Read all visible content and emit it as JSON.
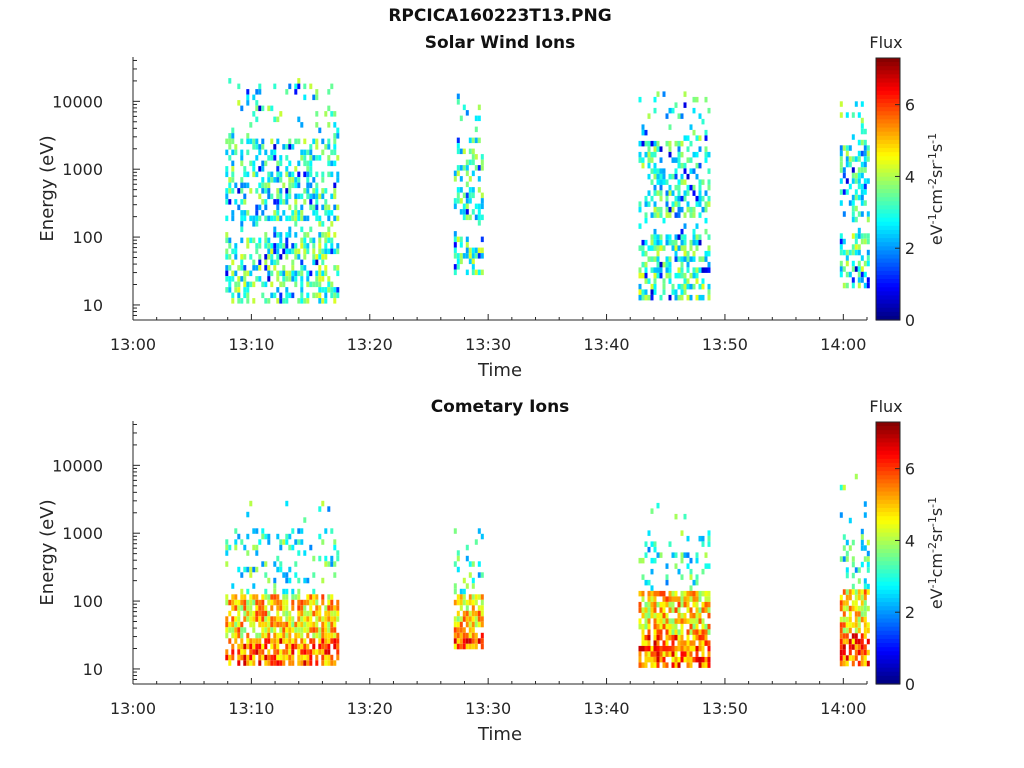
{
  "figure_title": "RPCICA160223T13.PNG",
  "chart_data": [
    {
      "type": "heatmap",
      "title": "Solar Wind Ions",
      "xlabel": "Time",
      "ylabel": "Energy (eV)",
      "x_ticks": [
        "13:00",
        "13:10",
        "13:20",
        "13:30",
        "13:40",
        "13:50",
        "14:00"
      ],
      "y_ticks": [
        "10",
        "100",
        "1000",
        "10000"
      ],
      "y_scale": "log",
      "ylim": [
        6,
        45000
      ],
      "xlim_minutes": [
        0,
        62
      ],
      "colorbar": {
        "title": "Flux",
        "label": "eV-1cm-2sr-1s-1",
        "ticks": [
          "0",
          "2",
          "4",
          "6"
        ],
        "range": [
          0,
          7.3
        ],
        "colormap": "jet"
      },
      "bursts": [
        {
          "start_min": 7.8,
          "end_min": 17.3,
          "energy_min": 12,
          "energy_max": 22000
        },
        {
          "start_min": 27.1,
          "end_min": 29.5,
          "energy_min": 28,
          "energy_max": 13000
        },
        {
          "start_min": 42.7,
          "end_min": 48.6,
          "energy_min": 12,
          "energy_max": 14000
        },
        {
          "start_min": 59.7,
          "end_min": 62.0,
          "energy_min": 18,
          "energy_max": 10000
        }
      ]
    },
    {
      "type": "heatmap",
      "title": "Cometary Ions",
      "xlabel": "Time",
      "ylabel": "Energy (eV)",
      "x_ticks": [
        "13:00",
        "13:10",
        "13:20",
        "13:30",
        "13:40",
        "13:50",
        "14:00"
      ],
      "y_ticks": [
        "10",
        "100",
        "1000",
        "10000"
      ],
      "y_scale": "log",
      "ylim": [
        6,
        45000
      ],
      "xlim_minutes": [
        0,
        62
      ],
      "colorbar": {
        "title": "Flux",
        "label": "eV-1cm-2sr-1s-1",
        "ticks": [
          "0",
          "2",
          "4",
          "6"
        ],
        "range": [
          0,
          7.3
        ],
        "colormap": "jet"
      },
      "bursts": [
        {
          "start_min": 7.8,
          "end_min": 17.3,
          "energy_min": 12,
          "energy_max": 3000
        },
        {
          "start_min": 27.1,
          "end_min": 29.6,
          "energy_min": 20,
          "energy_max": 3000
        },
        {
          "start_min": 42.7,
          "end_min": 48.6,
          "energy_min": 12,
          "energy_max": 2800
        },
        {
          "start_min": 59.7,
          "end_min": 62.0,
          "energy_min": 12,
          "energy_max": 7500
        }
      ]
    }
  ]
}
